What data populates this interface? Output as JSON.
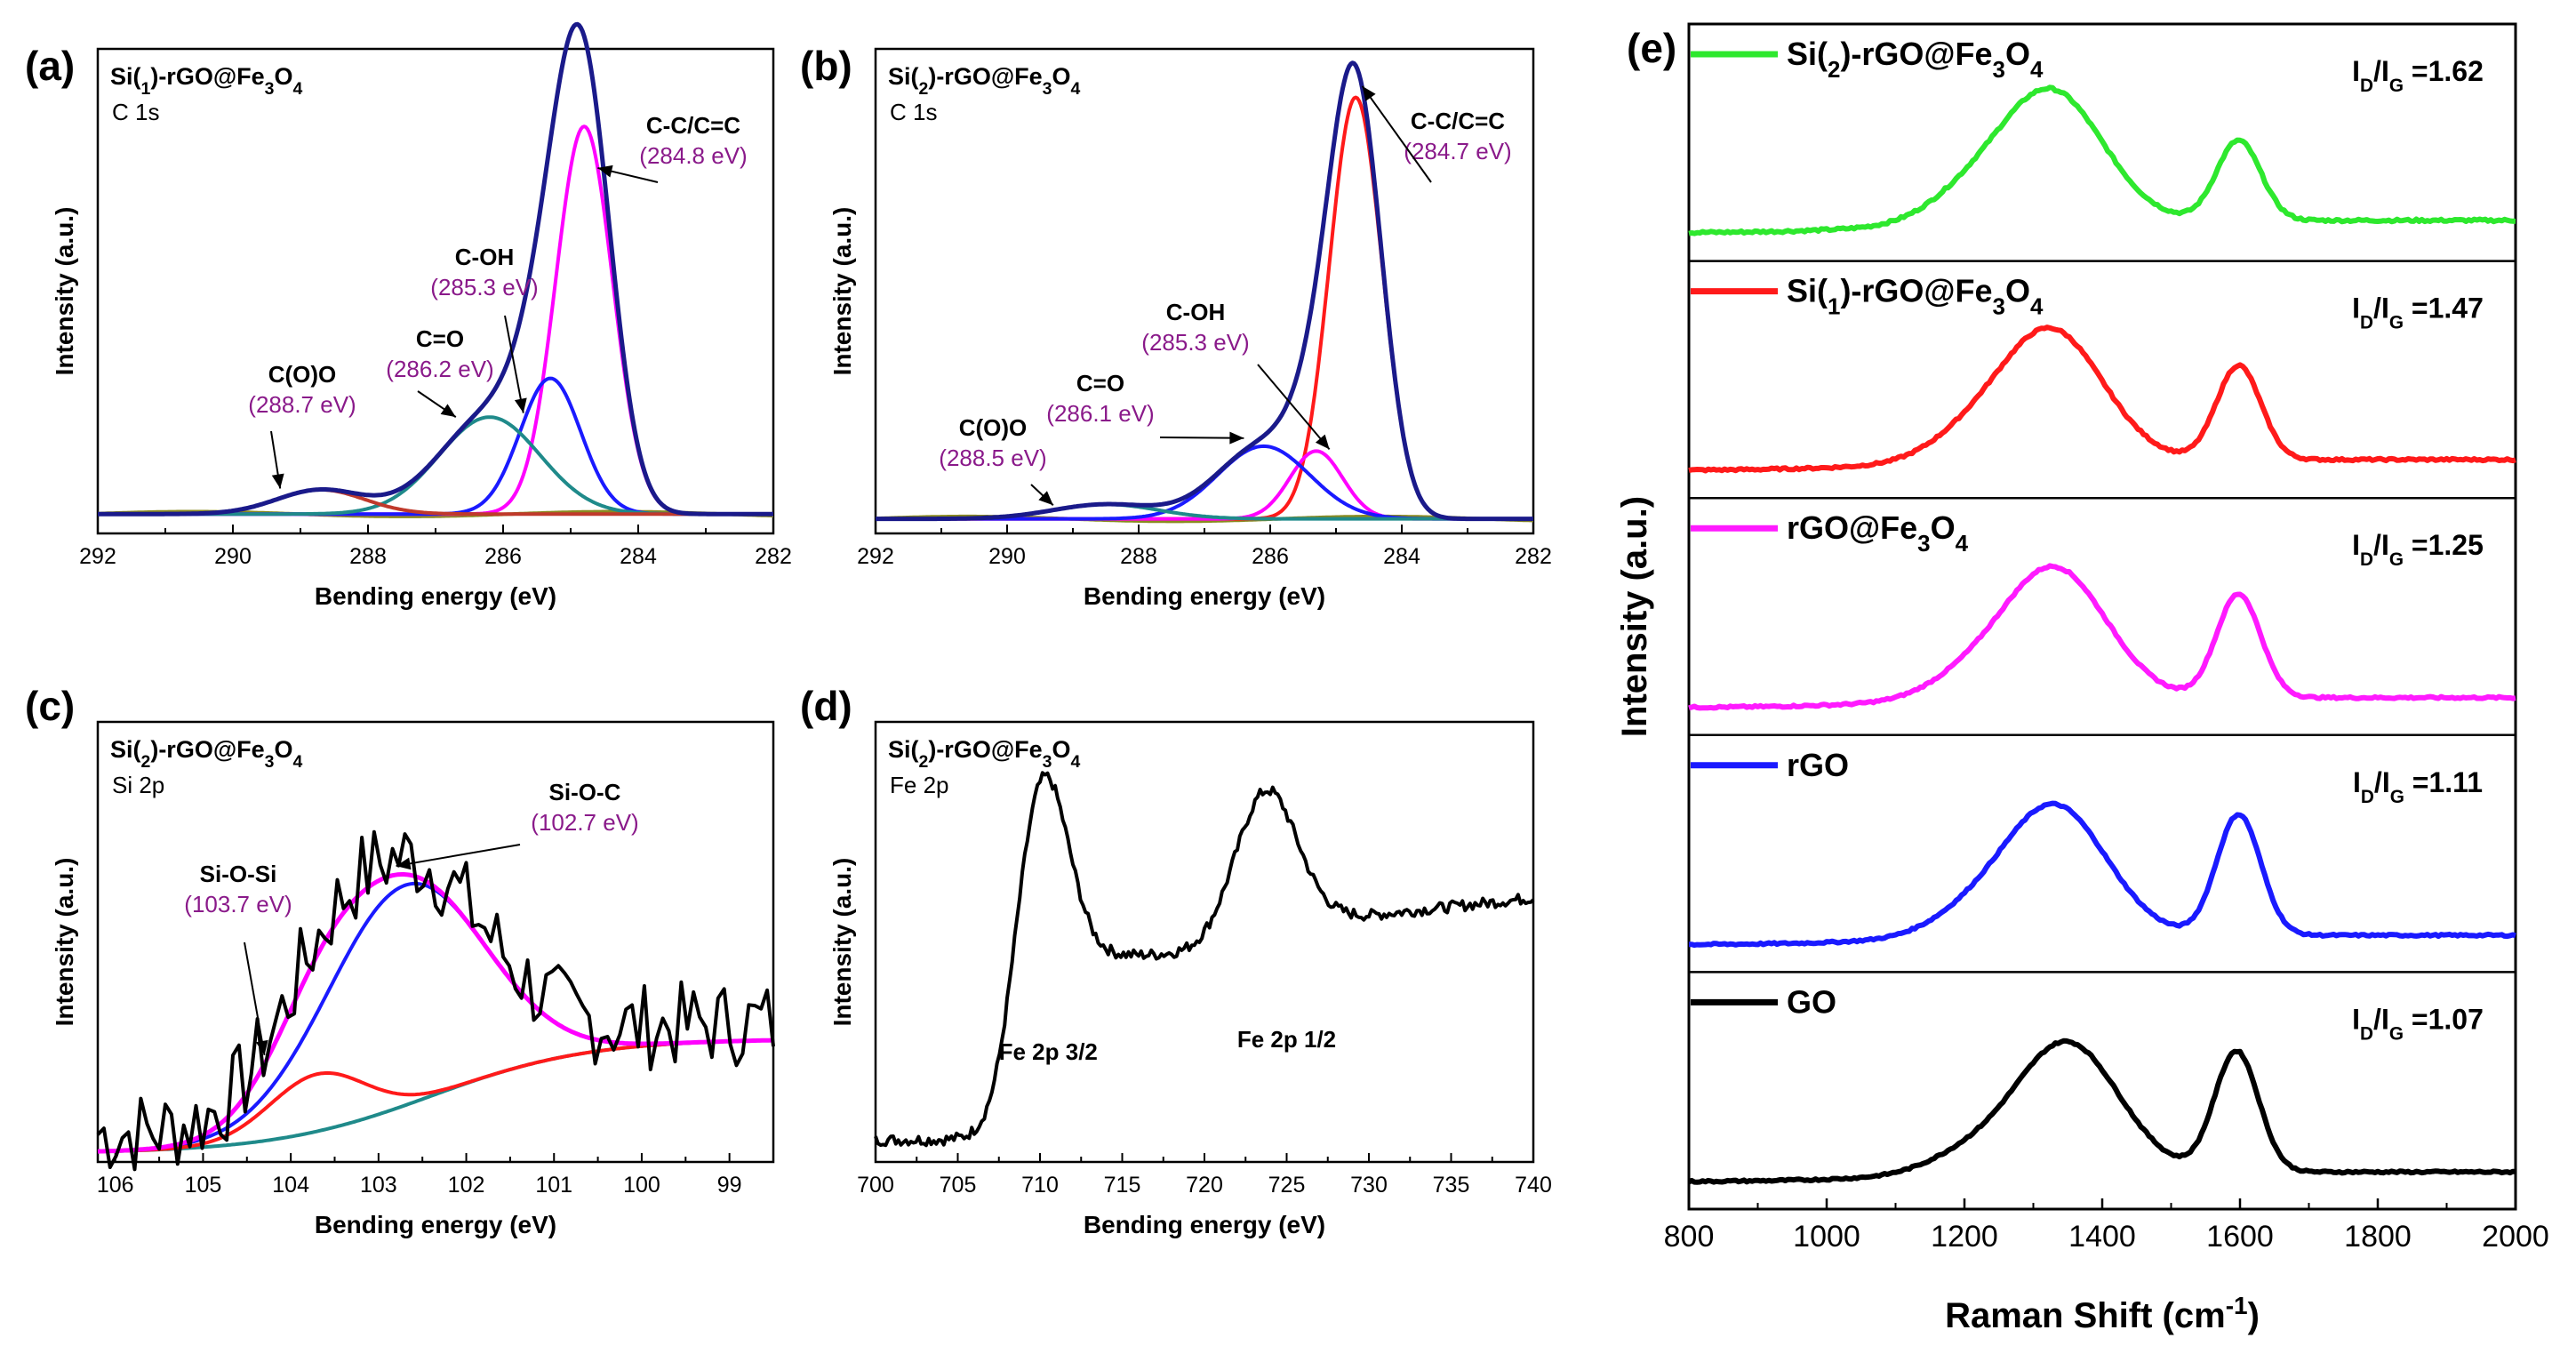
{
  "chart_data": [
    {
      "id": "a",
      "type": "line",
      "panel_label": "(a)",
      "title": "Si(1)-rGO@Fe3O4",
      "subtitle": "C 1s",
      "xlabel": "Bending energy (eV)",
      "ylabel": "Intensity (a.u.)",
      "xlim": [
        292,
        282
      ],
      "xticks": [
        292,
        290,
        288,
        286,
        284,
        282
      ],
      "ylim": [
        0,
        1
      ],
      "baseline": 0.04,
      "components": [
        {
          "name": "C-C/C=C",
          "center": 284.8,
          "height": 0.8,
          "sigma": 0.42,
          "color": "#ff00ff"
        },
        {
          "name": "C-OH",
          "center": 285.3,
          "height": 0.28,
          "sigma": 0.45,
          "color": "#1a1aff"
        },
        {
          "name": "C=O",
          "center": 286.2,
          "height": 0.2,
          "sigma": 0.75,
          "color": "#1f8a8a"
        },
        {
          "name": "C(O)O",
          "center": 288.7,
          "height": 0.05,
          "sigma": 0.65,
          "color": "#c0392b"
        }
      ],
      "background_color": "#8a8a1f",
      "envelope_color": "#1a1a8a",
      "peak_labels": [
        {
          "label": "C-C/C=C",
          "value": "(284.8 eV)"
        },
        {
          "label": "C-OH",
          "value": "(285.3 eV)"
        },
        {
          "label": "C=O",
          "value": "(286.2 eV)"
        },
        {
          "label": "C(O)O",
          "value": "(288.7 eV)"
        }
      ]
    },
    {
      "id": "b",
      "type": "line",
      "panel_label": "(b)",
      "title": "Si(2)-rGO@Fe3O4",
      "subtitle": "C 1s",
      "xlabel": "Bending energy (eV)",
      "ylabel": "Intensity (a.u.)",
      "xlim": [
        292,
        282
      ],
      "xticks": [
        292,
        290,
        288,
        286,
        284,
        282
      ],
      "ylim": [
        0,
        1
      ],
      "baseline": 0.03,
      "components": [
        {
          "name": "C-C/C=C",
          "center": 284.7,
          "height": 0.87,
          "sigma": 0.4,
          "color": "#ff1a1a"
        },
        {
          "name": "C-OH",
          "center": 285.3,
          "height": 0.14,
          "sigma": 0.4,
          "color": "#ff00ff"
        },
        {
          "name": "C=O",
          "center": 286.1,
          "height": 0.15,
          "sigma": 0.7,
          "color": "#1a1aff"
        },
        {
          "name": "C(O)O",
          "center": 288.5,
          "height": 0.03,
          "sigma": 0.8,
          "color": "#1f8a8a"
        }
      ],
      "background_color": "#8a8a1f",
      "envelope_color": "#1a1a8a",
      "peak_labels": [
        {
          "label": "C-C/C=C",
          "value": "(284.7 eV)"
        },
        {
          "label": "C-OH",
          "value": "(285.3 eV)"
        },
        {
          "label": "C=O",
          "value": "(286.1 eV)"
        },
        {
          "label": "C(O)O",
          "value": "(288.5 eV)"
        }
      ]
    },
    {
      "id": "c",
      "type": "line",
      "panel_label": "(c)",
      "title": "Si(2)-rGO@Fe3O4",
      "subtitle": "Si 2p",
      "xlabel": "Bending energy (eV)",
      "ylabel": "Intensity (a.u.)",
      "xlim": [
        106.2,
        98.5
      ],
      "xticks": [
        106,
        105,
        104,
        103,
        102,
        101,
        100,
        99
      ],
      "ylim": [
        0,
        1
      ],
      "components": [
        {
          "name": "Si-O-C",
          "center": 102.7,
          "height": 0.5,
          "sigma": 0.9,
          "color": "#1a1aff"
        },
        {
          "name": "Si-O-Si",
          "center": 103.7,
          "height": 0.13,
          "sigma": 0.55,
          "color": "#ff1a1a"
        }
      ],
      "envelope_color": "#ff00ff",
      "raw_color": "#000000",
      "background_color": "#1f8a8a",
      "peak_labels": [
        {
          "label": "Si-O-C",
          "value": "(102.7 eV)"
        },
        {
          "label": "Si-O-Si",
          "value": "(103.7 eV)"
        }
      ]
    },
    {
      "id": "d",
      "type": "line",
      "panel_label": "(d)",
      "title": "Si(2)-rGO@Fe3O4",
      "subtitle": "Fe 2p",
      "xlabel": "Bending energy (eV)",
      "ylabel": "Intensity (a.u.)",
      "xlim": [
        700,
        740
      ],
      "xticks": [
        700,
        705,
        710,
        715,
        720,
        725,
        730,
        735,
        740
      ],
      "ylim": [
        0,
        1
      ],
      "line_color": "#000000",
      "annotations": [
        "Fe 2p 3/2",
        "Fe 2p 1/2"
      ]
    },
    {
      "id": "e",
      "type": "line",
      "panel_label": "(e)",
      "xlabel": "Raman Shift (cm-1)",
      "ylabel": "Intensity (a.u.)",
      "xlim": [
        800,
        2000
      ],
      "xticks": [
        800,
        1000,
        1200,
        1400,
        1600,
        1800,
        2000
      ],
      "series": [
        {
          "name": "Si(2)-rGO@Fe3O4",
          "ratio": "ID/IG =1.62",
          "ratio_value": 1.62,
          "color": "#2ee82e",
          "D_center": 1325,
          "G_center": 1598,
          "D_height": 0.62,
          "G_height": 0.38
        },
        {
          "name": "Si(1)-rGO@Fe3O4",
          "ratio": "ID/IG =1.47",
          "ratio_value": 1.47,
          "color": "#ff1a1a",
          "D_center": 1325,
          "G_center": 1598,
          "D_height": 0.72,
          "G_height": 0.52
        },
        {
          "name": "rGO@Fe3O4",
          "ratio": "ID/IG =1.25",
          "ratio_value": 1.25,
          "color": "#ff1aff",
          "D_center": 1330,
          "G_center": 1598,
          "D_height": 0.78,
          "G_height": 0.62
        },
        {
          "name": "rGO",
          "ratio": "ID/IG =1.11",
          "ratio_value": 1.11,
          "color": "#1a1aff",
          "D_center": 1330,
          "G_center": 1598,
          "D_height": 0.82,
          "G_height": 0.76
        },
        {
          "name": "GO",
          "ratio": "ID/IG =1.07",
          "ratio_value": 1.07,
          "color": "#000000",
          "D_center": 1348,
          "G_center": 1595,
          "D_height": 0.8,
          "G_height": 0.74
        }
      ]
    }
  ]
}
